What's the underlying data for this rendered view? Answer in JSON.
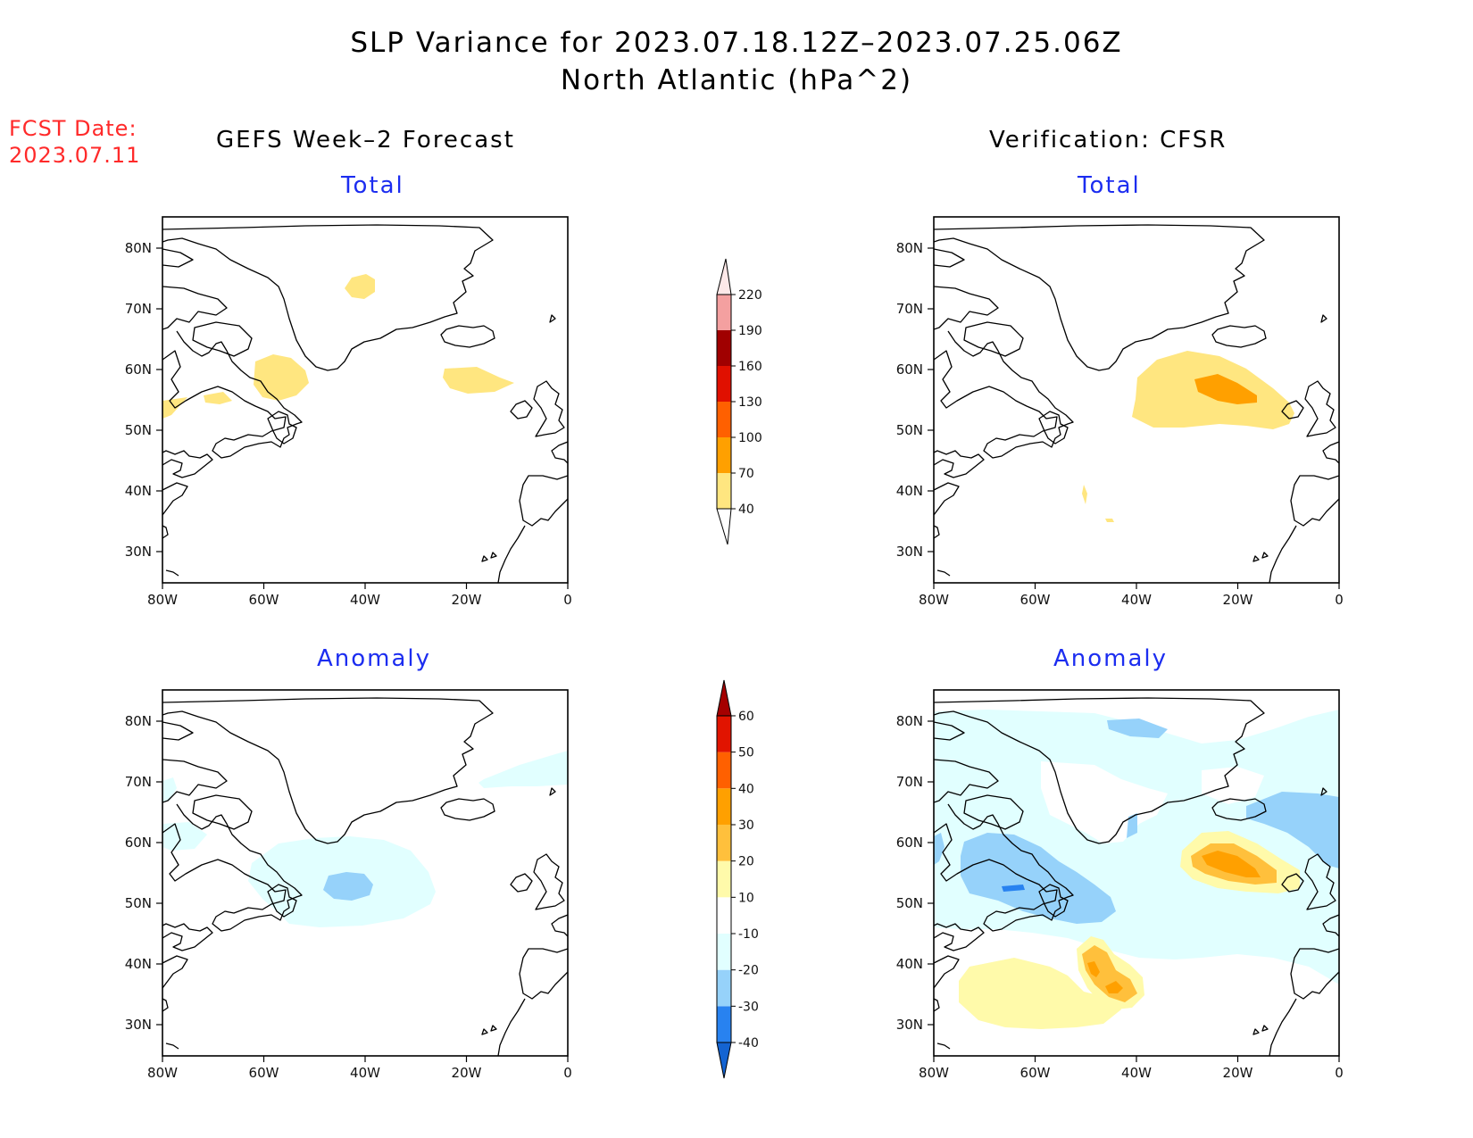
{
  "title_line1": "SLP Variance for 2023.07.18.12Z–2023.07.25.06Z",
  "title_line2": "North Atlantic (hPa^2)",
  "fcst_label": "FCST Date:",
  "fcst_date": "2023.07.11",
  "left_column_title": "GEFS Week–2 Forecast",
  "right_column_title": "Verification: CFSR",
  "panels": {
    "forecast_total": {
      "label": "Total"
    },
    "verification_total": {
      "label": "Total"
    },
    "forecast_anomaly": {
      "label": "Anomaly"
    },
    "verification_anomaly": {
      "label": "Anomaly"
    }
  },
  "map_axes": {
    "lon_labels": [
      "80W",
      "60W",
      "40W",
      "20W",
      "0"
    ],
    "lat_labels": [
      "80N",
      "70N",
      "60N",
      "50N",
      "40N",
      "30N"
    ],
    "lon_range": [
      -80,
      0
    ],
    "lat_range": [
      25,
      85
    ]
  },
  "total_colorbar": {
    "levels": [
      "40",
      "70",
      "100",
      "130",
      "160",
      "190",
      "220"
    ],
    "colors": [
      "#ffe680",
      "#ffa000",
      "#ff6000",
      "#e01000",
      "#a00000",
      "#f4a0a0",
      "#fde8e8"
    ]
  },
  "anomaly_colorbar": {
    "levels": [
      "-40",
      "-30",
      "-20",
      "-10",
      "10",
      "20",
      "30",
      "40",
      "50",
      "60"
    ],
    "colors": [
      "#1464d2",
      "#2882f0",
      "#96d2fa",
      "#e1ffff",
      "#ffffff",
      "#fffaaa",
      "#ffc03c",
      "#ffa000",
      "#ff6000",
      "#e11400",
      "#a50000"
    ]
  }
}
